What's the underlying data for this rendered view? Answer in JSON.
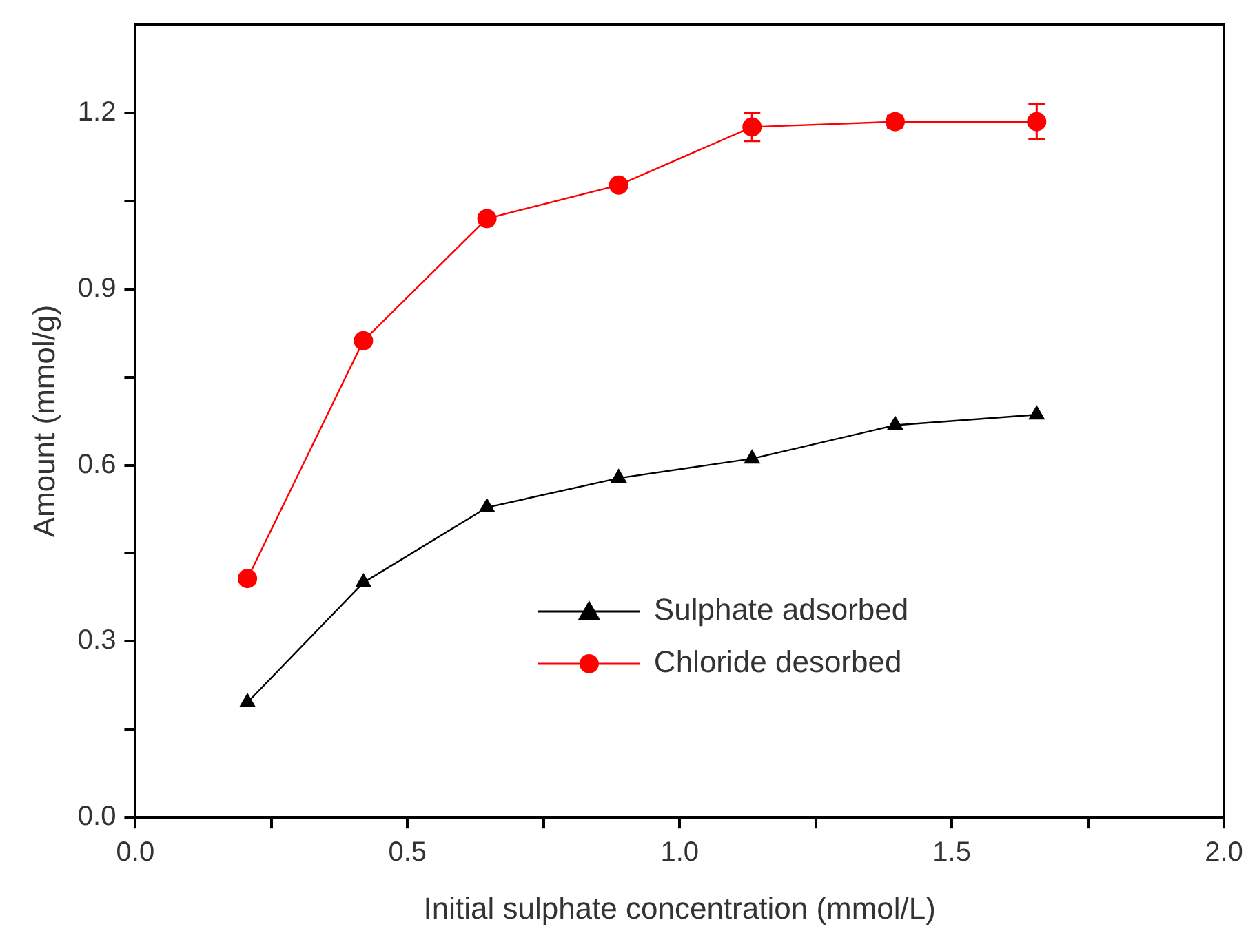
{
  "chart_data": {
    "type": "line",
    "xlabel": "Initial sulphate concentration (mmol/L)",
    "ylabel": "Amount (mmol/g)",
    "x": [
      0.206,
      0.419,
      0.646,
      0.888,
      1.133,
      1.396,
      1.656
    ],
    "xlim": [
      0,
      2.0
    ],
    "ylim": [
      0,
      1.35
    ],
    "xticks": [
      {
        "value": 0,
        "label": "0.0"
      },
      {
        "value": 0.25,
        "label": null
      },
      0.5,
      {
        "value": 0.75,
        "label": null
      },
      {
        "value": 1,
        "label": "1.0"
      },
      {
        "value": 1.25,
        "label": null
      },
      1.5,
      {
        "value": 1.75,
        "label": null
      },
      {
        "value": 2,
        "label": "2.0"
      }
    ],
    "yticks": [
      {
        "value": 0,
        "label": "0.0"
      },
      {
        "value": 0.15,
        "label": null
      },
      0.3,
      {
        "value": 0.45,
        "label": null
      },
      0.6,
      {
        "value": 0.75,
        "label": null
      },
      0.9,
      {
        "value": 1.05,
        "label": null
      },
      1.2
    ],
    "grid": false,
    "legend": "bottom",
    "series": [
      {
        "name": "Sulphate adsorbed",
        "color": "#000000",
        "marker": "triangle",
        "values": [
          0.196,
          0.4,
          0.528,
          0.578,
          0.611,
          0.668,
          0.686
        ]
      },
      {
        "name": "Chloride desorbed",
        "color": "#ff0000",
        "marker": "circle",
        "values": [
          0.407,
          0.812,
          1.02,
          1.077,
          1.176,
          1.185,
          1.185
        ],
        "errors": [
          null,
          null,
          0.008,
          0.006,
          0.024,
          0.01,
          0.03
        ]
      }
    ]
  }
}
